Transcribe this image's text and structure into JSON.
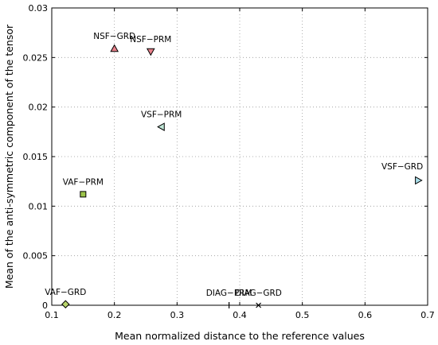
{
  "chart_data": {
    "type": "scatter",
    "xlabel": "Mean normalized distance to the reference values",
    "ylabel": "Mean of the anti-symmetric component of the tensor",
    "xlim": [
      0.1,
      0.7
    ],
    "ylim": [
      0,
      0.03
    ],
    "xticks": [
      "0.1",
      "0.2",
      "0.3",
      "0.4",
      "0.5",
      "0.6",
      "0.7"
    ],
    "yticks": [
      "0",
      "0.005",
      "0.01",
      "0.015",
      "0.02",
      "0.025",
      "0.03"
    ],
    "grid": true,
    "points": [
      {
        "label": "NSF−GRD",
        "x": 0.2,
        "y": 0.0259,
        "marker": "triangle-up",
        "color": "#e8808a"
      },
      {
        "label": "NSF−PRM",
        "x": 0.258,
        "y": 0.0256,
        "marker": "triangle-down",
        "color": "#e8808a"
      },
      {
        "label": "VSF−PRM",
        "x": 0.275,
        "y": 0.018,
        "marker": "triangle-left",
        "color": "#bfe6d6"
      },
      {
        "label": "VSF−GRD",
        "x": 0.685,
        "y": 0.0126,
        "marker": "triangle-right",
        "color": "#a8dde8"
      },
      {
        "label": "VAF−PRM",
        "x": 0.15,
        "y": 0.0112,
        "marker": "square",
        "color": "#9cc44a"
      },
      {
        "label": "VAF−GRD",
        "x": 0.122,
        "y": 0.0001,
        "marker": "diamond",
        "color": "#b8d46a"
      },
      {
        "label": "DIAG−PRM",
        "x": 0.383,
        "y": 0.0,
        "marker": "vline",
        "color": "#000000"
      },
      {
        "label": "DIAG−GRD",
        "x": 0.43,
        "y": 0.0,
        "marker": "x",
        "color": "#000000"
      }
    ]
  }
}
